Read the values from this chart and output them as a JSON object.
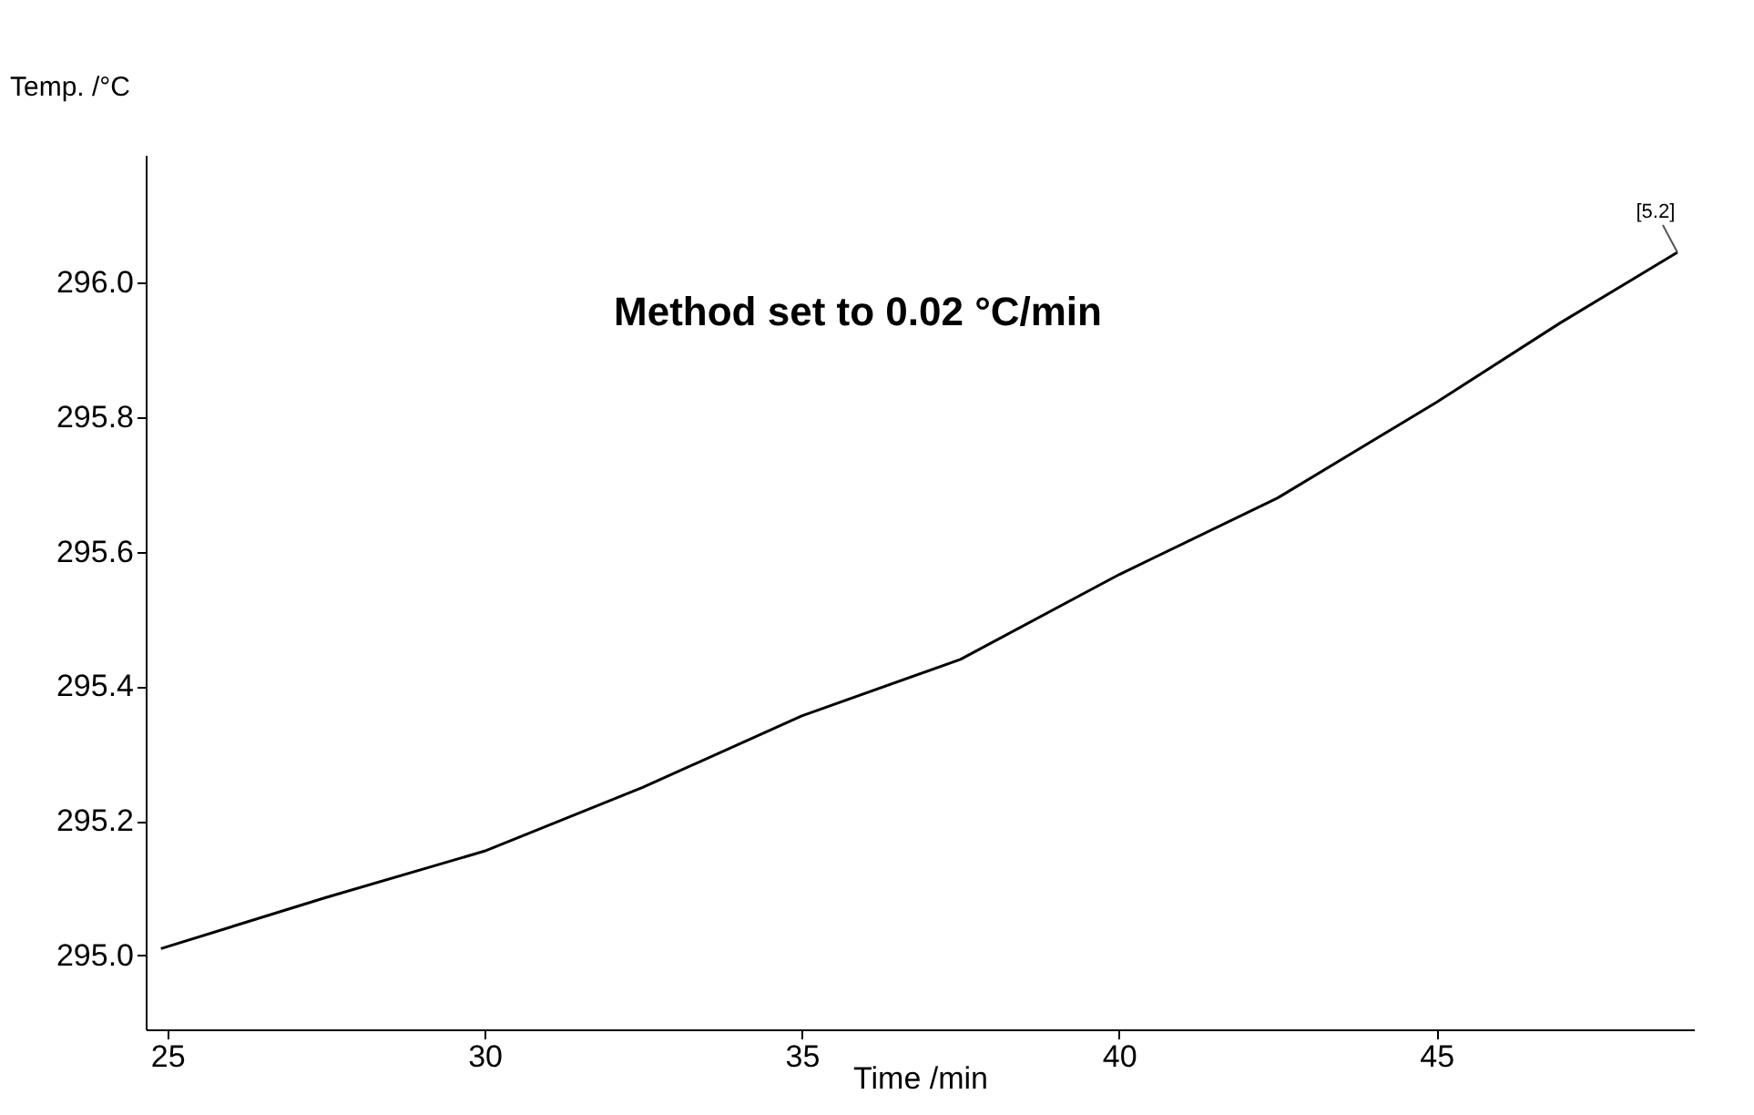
{
  "chart_data": {
    "type": "line",
    "xlabel": "Time /min",
    "ylabel": "Temp. /°C",
    "x": [
      24.9,
      27.5,
      30,
      32.5,
      35,
      37.5,
      40,
      42.5,
      45,
      46.95,
      48.8
    ],
    "series": [
      {
        "color": "#000000",
        "values": [
          295.01,
          295.086,
          295.155,
          295.25,
          295.356,
          295.44,
          295.566,
          295.68,
          295.822,
          295.94,
          296.045
        ]
      }
    ],
    "xlim": [
      24.66,
      49.06
    ],
    "ylim": [
      294.89,
      296.19
    ],
    "xticks": [
      25,
      30,
      35,
      40,
      45
    ],
    "yticks": [
      {
        "value": 295.0,
        "label": "295.0"
      },
      {
        "value": 295.2,
        "label": "295.2"
      },
      {
        "value": 295.4,
        "label": "295.4"
      },
      {
        "value": 295.6,
        "label": "295.6"
      },
      {
        "value": 295.8,
        "label": "295.8"
      },
      {
        "value": 296.0,
        "label": "296.0"
      }
    ],
    "annotations": [
      "Method set to 0.02 °C/min",
      {
        "text": "[5.2]",
        "x": 48.8,
        "y": 296.045
      }
    ],
    "grid": false,
    "marker": "none",
    "line_style": "solid"
  }
}
